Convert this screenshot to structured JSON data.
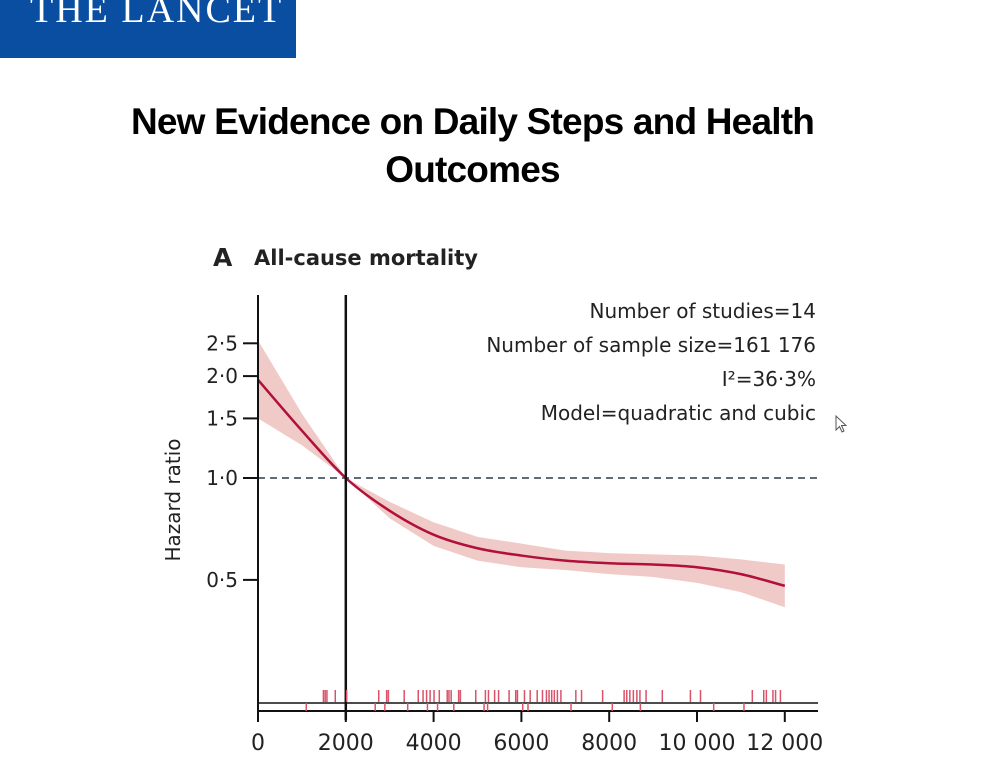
{
  "logo": {
    "text": "THE LANCET",
    "color": "#0a4ea1"
  },
  "page_title": "New Evidence on Daily Steps and Health Outcomes",
  "chart_data": {
    "type": "line",
    "panel_label": "A",
    "title": "All-cause mortality",
    "xlabel": "",
    "ylabel": "Hazard ratio",
    "y_scale": "log",
    "xlim": [
      0,
      12700
    ],
    "ylim": [
      0.22,
      3.4
    ],
    "x_ticks": [
      0,
      2000,
      4000,
      6000,
      8000,
      10000,
      12000
    ],
    "x_tick_labels": [
      "0",
      "2000",
      "4000",
      "6000",
      "8000",
      "10 000",
      "12 000"
    ],
    "y_ticks": [
      0.5,
      1.0,
      1.5,
      2.0,
      2.5
    ],
    "y_tick_labels": [
      "0·5",
      "1·0",
      "1·5",
      "2·0",
      "2·5"
    ],
    "reference_x": 2000,
    "reference_y": 1.0,
    "annotations": [
      "Number of studies=14",
      "Number of sample size=161 176",
      "I²=36·3%",
      "Model=quadratic and cubic"
    ],
    "series": {
      "x": [
        0,
        1000,
        2000,
        3000,
        4000,
        5000,
        6000,
        7000,
        8000,
        9000,
        10000,
        11000,
        12000
      ],
      "hr": [
        1.95,
        1.38,
        1.0,
        0.8,
        0.68,
        0.62,
        0.59,
        0.57,
        0.56,
        0.555,
        0.545,
        0.52,
        0.48
      ],
      "lower": [
        1.5,
        1.25,
        1.0,
        0.76,
        0.63,
        0.57,
        0.545,
        0.535,
        0.52,
        0.51,
        0.49,
        0.46,
        0.415
      ],
      "upper": [
        2.55,
        1.55,
        1.0,
        0.85,
        0.74,
        0.67,
        0.64,
        0.61,
        0.6,
        0.595,
        0.59,
        0.575,
        0.555
      ]
    },
    "rug_upper": [
      1490,
      1530,
      1570,
      1760,
      2020,
      2750,
      2930,
      2970,
      3330,
      3650,
      3760,
      3840,
      3920,
      4010,
      4130,
      4310,
      4350,
      4400,
      4570,
      4610,
      4960,
      5180,
      5250,
      5390,
      5480,
      5720,
      5870,
      5910,
      6070,
      6200,
      6360,
      6480,
      6570,
      6630,
      6690,
      6750,
      6820,
      6900,
      7240,
      7370,
      7850,
      8340,
      8400,
      8470,
      8550,
      8630,
      8700,
      8840,
      9210,
      9850,
      10080,
      11260,
      11520,
      11580,
      11730,
      11790,
      11900
    ],
    "rug_lower": [
      1100,
      2670,
      2890,
      3410,
      3860,
      4090,
      4460,
      5150,
      5230,
      6030,
      6150,
      7130,
      8070,
      8710,
      10380,
      11070
    ],
    "colors": {
      "line": "#b0103a",
      "band": "#f0cac6",
      "rug": "#d9536a",
      "reference": "#5e6e78",
      "axis": "#111111"
    }
  },
  "cursor": {
    "icon": "mouse-pointer-icon"
  }
}
